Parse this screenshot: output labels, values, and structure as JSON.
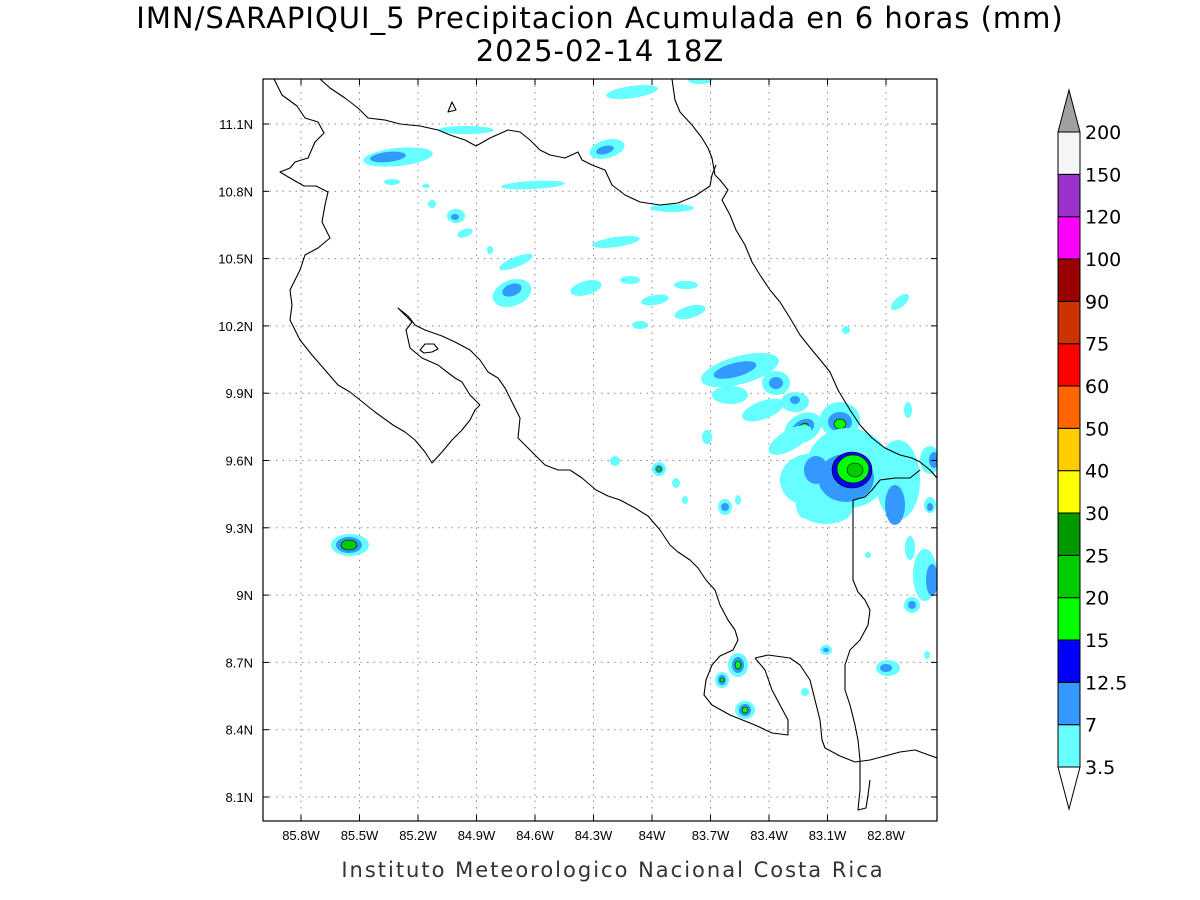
{
  "title": {
    "line1": "IMN/SARAPIQUI_5 Precipitacion Acumulada en 6 horas (mm)",
    "line2": "2025-02-14 18Z"
  },
  "credit": "Instituto Meteorologico Nacional Costa Rica",
  "axes": {
    "lon_ticks": [
      "85.8W",
      "85.5W",
      "85.2W",
      "84.9W",
      "84.6W",
      "84.3W",
      "84W",
      "83.7W",
      "83.4W",
      "83.1W",
      "82.8W"
    ],
    "lat_ticks": [
      "11.1N",
      "10.8N",
      "10.5N",
      "10.2N",
      "9.9N",
      "9.6N",
      "9.3N",
      "9N",
      "8.7N",
      "8.4N",
      "8.1N"
    ]
  },
  "colorbar": {
    "levels": [
      "3.5",
      "7",
      "12.5",
      "15",
      "20",
      "25",
      "30",
      "40",
      "50",
      "60",
      "75",
      "90",
      "100",
      "120",
      "150",
      "200"
    ],
    "colors": [
      "#66ffff",
      "#3399ff",
      "#0000ff",
      "#00ff00",
      "#00cc00",
      "#009900",
      "#ffff00",
      "#ffcc00",
      "#ff6600",
      "#ff0000",
      "#cc3300",
      "#990000",
      "#ff00ff",
      "#9933cc",
      "#f5f5f5"
    ],
    "under_color": "#ffffff",
    "over_color": "#a0a0a0"
  },
  "rain_colors": {
    "cyan": "#66ffff",
    "lightblue": "#3399ff",
    "blue": "#0000ff",
    "green": "#00ff00",
    "midgreen": "#00cc00",
    "darkgreen": "#009900"
  }
}
